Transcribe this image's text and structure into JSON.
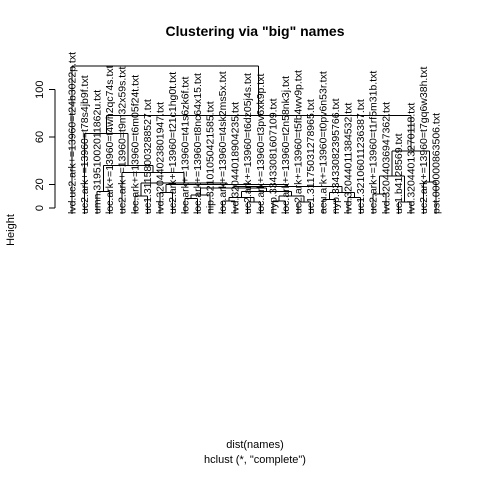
{
  "chart_data": {
    "type": "dendrogram",
    "title": "Clustering via \"big\" names",
    "xlabel": "dist(names)",
    "sublabel": "hclust (*, \"complete\")",
    "ylabel": "Height",
    "yticks": [
      0,
      20,
      60,
      100
    ],
    "ylim": [
      0,
      120
    ],
    "leaves": [
      "lvd.uc2.ark+=13960=t24b3022p.txt",
      "uc2.ark+=13960=t78s4jb9f.txt",
      "umn.31951002011862u.txt",
      "loc.ark+=13960=t4wh2qc74s.txt",
      "uc2.ark+=13960=t9m32x59s.txt",
      "loc.ark+=13960=t6m05f24t.txt",
      "uc1.31158003288527.txt",
      "lvd.32044023801947.txt",
      "uc2.ark+=13960=t21c1hg0t.txt",
      "loc.ark+=13960=t41s6zk6f.txt",
      "loc.ark+=13960=t8nc64x15.txt",
      "nip.32101050421585.txt",
      "loc.ark+=13960=t4sk2ms5x.txt",
      "lvd.32044018904235.txt",
      "uc2.ark+=13960=t6dz05j4s.txt",
      "loc.ark+=13960=t3pv6xk9p.txt",
      "nyp.33433081607109.txt",
      "loc.ark+=13960=t2n58nk3j.txt",
      "uc2.ark+=13960=t5fb4wv9p.txt",
      "uc1.31175031278965.txt",
      "aeu.ark+=13960=t0pv6n53r.txt",
      "nyp.33433082395766.txt",
      "lvd.32044011384532.txt",
      "uc1.32106011236387.txt",
      "uc2.ark+=13960=t1rf5m31b.txt",
      "lvd.32044036947362.txt",
      "uc1.b4128569.txt",
      "lvd.32044013270118.txt",
      "uc2.ark+=13960=t7gq6w38h.txt",
      "pst.000000863506.txt"
    ],
    "merges": [
      {
        "a": "L12",
        "b": "L13",
        "h": 6
      },
      {
        "a": "L14",
        "b": "L15",
        "h": 5
      },
      {
        "a": "L16",
        "b": "L17",
        "h": 6
      },
      {
        "a": "L18",
        "b": "L19",
        "h": 5
      },
      {
        "a": "L20",
        "b": "L21",
        "h": 7
      },
      {
        "a": "L22",
        "b": "L23",
        "h": 9
      },
      {
        "a": "L9",
        "b": "L10",
        "h": 8
      },
      {
        "a": "L5",
        "b": "L6",
        "h": 10
      },
      {
        "a": "L24",
        "b": "L25",
        "h": 12
      },
      {
        "a": "L26",
        "b": "L27",
        "h": 5
      },
      {
        "a": "L28",
        "b": "L29",
        "h": 22
      },
      {
        "a": "L2",
        "b": "L3",
        "h": 14
      },
      {
        "a": "M1",
        "b": "M2",
        "h": 9
      },
      {
        "a": "M3",
        "b": "M4",
        "h": 10
      },
      {
        "a": "M5",
        "b": "M6",
        "h": 13
      },
      {
        "a": "L7",
        "b": "L8",
        "h": 13
      },
      {
        "a": "M7",
        "b": "L11",
        "h": 11
      },
      {
        "a": "M13",
        "b": "M14",
        "h": 14
      },
      {
        "a": "M17",
        "b": "M18",
        "h": 17
      },
      {
        "a": "M19",
        "b": "M15",
        "h": 18
      },
      {
        "a": "M16",
        "b": "M20",
        "h": 20
      },
      {
        "a": "M8",
        "b": "M21",
        "h": 21
      },
      {
        "a": "L4",
        "b": "M22",
        "h": 30
      },
      {
        "a": "M12",
        "b": "M23",
        "h": 36
      },
      {
        "a": "L1",
        "b": "M24",
        "h": 63
      },
      {
        "a": "M9",
        "b": "M10",
        "h": 27
      },
      {
        "a": "M26",
        "b": "M11",
        "h": 48
      },
      {
        "a": "M25",
        "b": "M27",
        "h": 78
      },
      {
        "a": "L0",
        "b": "M28",
        "h": 120
      }
    ]
  }
}
